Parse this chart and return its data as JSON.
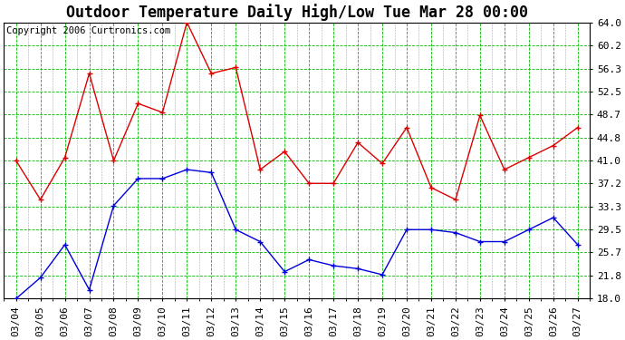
{
  "title": "Outdoor Temperature Daily High/Low Tue Mar 28 00:00",
  "copyright": "Copyright 2006 Curtronics.com",
  "dates": [
    "03/04",
    "03/05",
    "03/06",
    "03/07",
    "03/08",
    "03/09",
    "03/10",
    "03/11",
    "03/12",
    "03/13",
    "03/14",
    "03/15",
    "03/16",
    "03/17",
    "03/18",
    "03/19",
    "03/20",
    "03/21",
    "03/22",
    "03/23",
    "03/24",
    "03/25",
    "03/26",
    "03/27"
  ],
  "high": [
    41.0,
    34.5,
    41.5,
    55.5,
    41.0,
    50.5,
    49.0,
    64.0,
    55.5,
    56.5,
    39.5,
    42.5,
    37.2,
    37.2,
    44.0,
    40.5,
    46.5,
    36.5,
    34.5,
    48.5,
    39.5,
    41.5,
    43.5,
    46.5
  ],
  "low": [
    18.0,
    21.5,
    27.0,
    19.5,
    33.5,
    38.0,
    38.0,
    39.5,
    39.0,
    29.5,
    27.5,
    22.5,
    24.5,
    23.5,
    23.0,
    22.0,
    29.5,
    29.5,
    29.0,
    27.5,
    27.5,
    29.5,
    31.5,
    27.0
  ],
  "yticks": [
    18.0,
    21.8,
    25.7,
    29.5,
    33.3,
    37.2,
    41.0,
    44.8,
    48.7,
    52.5,
    56.3,
    60.2,
    64.0
  ],
  "ymin": 18.0,
  "ymax": 64.0,
  "high_color": "#dd0000",
  "low_color": "#0000dd",
  "bg_color": "#ffffff",
  "plot_bg_color": "#ffffff",
  "grid_color_major": "#00bb00",
  "title_fontsize": 12,
  "tick_fontsize": 8,
  "copyright_fontsize": 7.5
}
